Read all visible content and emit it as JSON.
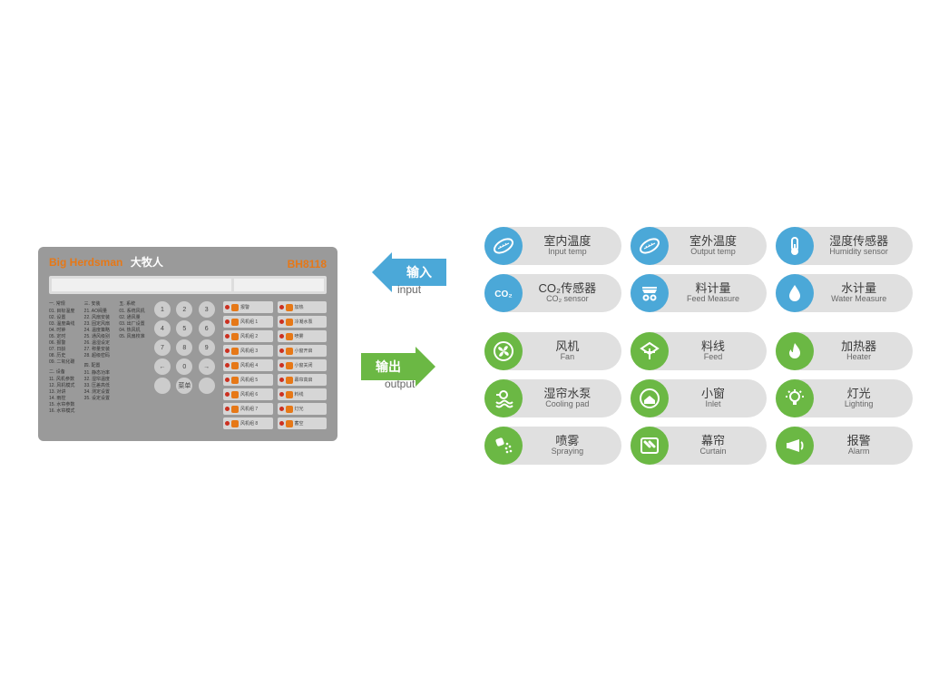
{
  "panel": {
    "brand_en": "Big Herdsman",
    "brand_cn": "大牧人",
    "model": "BH8118",
    "menu": {
      "groups": [
        {
          "header": "一. 常规",
          "items": [
            "01. 目标温度",
            "02. 设置",
            "03. 温度曲线",
            "04. 时钟",
            "05. 定时",
            "06. 报警",
            "07. 日龄",
            "08. 历史",
            "09. 二氧化碳"
          ]
        },
        {
          "header": "二. 设备",
          "items": [
            "11. 风机参数",
            "12. 风机模式",
            "13. 对讲",
            "14. 雨控",
            "15. 水帘参数",
            "16. 水帘模式"
          ]
        },
        {
          "header": "三. 安装",
          "items": [
            "21. AO阀量",
            "22. 风扇安装",
            "23. 固定风扇",
            "24. 温度策略",
            "25. 通风级别",
            "26. 温湿设定",
            "27. 称量安装",
            "28. 超级密码"
          ]
        },
        {
          "header": "四. 配置",
          "items": [
            "31. 静态功率",
            "32. 湿帘温度",
            "33. 压差高低",
            "34. 测定设置",
            "35. 设定设置"
          ]
        },
        {
          "header": "五. 系统",
          "items": [
            "01. 系统风机",
            "02. 通风量",
            "03. 出厂设置",
            "04. 热风机",
            "05. 风扇校准"
          ]
        }
      ]
    },
    "keys": [
      "1",
      "2",
      "3",
      "4",
      "5",
      "6",
      "7",
      "8",
      "9",
      "←",
      "0",
      "→",
      "",
      "菜单",
      ""
    ],
    "indicators": {
      "left": [
        {
          "label": "报警",
          "dot": "#cc3020",
          "ico": "#e67817"
        },
        {
          "label": "风机组 1",
          "dot": "#cc3020",
          "ico": "#e67817"
        },
        {
          "label": "风机组 2",
          "dot": "#cc3020",
          "ico": "#e67817"
        },
        {
          "label": "风机组 3",
          "dot": "#cc3020",
          "ico": "#e67817"
        },
        {
          "label": "风机组 4",
          "dot": "#cc3020",
          "ico": "#e67817"
        },
        {
          "label": "风机组 5",
          "dot": "#cc3020",
          "ico": "#e67817"
        },
        {
          "label": "风机组 6",
          "dot": "#cc3020",
          "ico": "#e67817"
        },
        {
          "label": "风机组 7",
          "dot": "#cc3020",
          "ico": "#e67817"
        },
        {
          "label": "风机组 8",
          "dot": "#cc3020",
          "ico": "#e67817"
        }
      ],
      "right": [
        {
          "label": "加热",
          "dot": "#cc3020",
          "ico": "#e67817"
        },
        {
          "label": "冷凝水泵",
          "dot": "#cc3020",
          "ico": "#e67817"
        },
        {
          "label": "喷雾",
          "dot": "#cc3020",
          "ico": "#e67817"
        },
        {
          "label": "小窗开启",
          "dot": "#cc3020",
          "ico": "#e67817"
        },
        {
          "label": "小窗关闭",
          "dot": "#cc3020",
          "ico": "#e67817"
        },
        {
          "label": "幕帘高启",
          "dot": "#cc3020",
          "ico": "#e67817"
        },
        {
          "label": "料线",
          "dot": "#cc3020",
          "ico": "#e67817"
        },
        {
          "label": "灯光",
          "dot": "#cc3020",
          "ico": "#e67817"
        },
        {
          "label": "蓄空",
          "dot": "#cc3020",
          "ico": "#e67817"
        }
      ]
    }
  },
  "arrows": {
    "input_cn": "输入",
    "input_en": "input",
    "output_cn": "输出",
    "output_en": "output"
  },
  "colors": {
    "blue": "#4ba8d8",
    "green": "#6bb844",
    "pill": "#e0e0e0"
  },
  "inputs": [
    {
      "icon": "thermo",
      "cn": "室内温度",
      "en": "Input temp"
    },
    {
      "icon": "thermo",
      "cn": "室外温度",
      "en": "Output temp"
    },
    {
      "icon": "humidity",
      "cn": "湿度传感器",
      "en": "Humidity sensor"
    },
    {
      "icon": "co2",
      "cn": "CO₂传感器",
      "en": "CO₂ sensor"
    },
    {
      "icon": "scale",
      "cn": "料计量",
      "en": "Feed Measure"
    },
    {
      "icon": "drop",
      "cn": "水计量",
      "en": "Water Measure"
    }
  ],
  "outputs": [
    {
      "icon": "fan",
      "cn": "风机",
      "en": "Fan"
    },
    {
      "icon": "feed",
      "cn": "料线",
      "en": "Feed"
    },
    {
      "icon": "flame",
      "cn": "加热器",
      "en": "Heater"
    },
    {
      "icon": "pump",
      "cn": "湿帘水泵",
      "en": "Cooling pad"
    },
    {
      "icon": "inlet",
      "cn": "小窗",
      "en": "Inlet"
    },
    {
      "icon": "light",
      "cn": "灯光",
      "en": "Lighting"
    },
    {
      "icon": "spray",
      "cn": "喷雾",
      "en": "Spraying"
    },
    {
      "icon": "curtain",
      "cn": "幕帘",
      "en": "Curtain"
    },
    {
      "icon": "alarm",
      "cn": "报警",
      "en": "Alarm"
    }
  ]
}
